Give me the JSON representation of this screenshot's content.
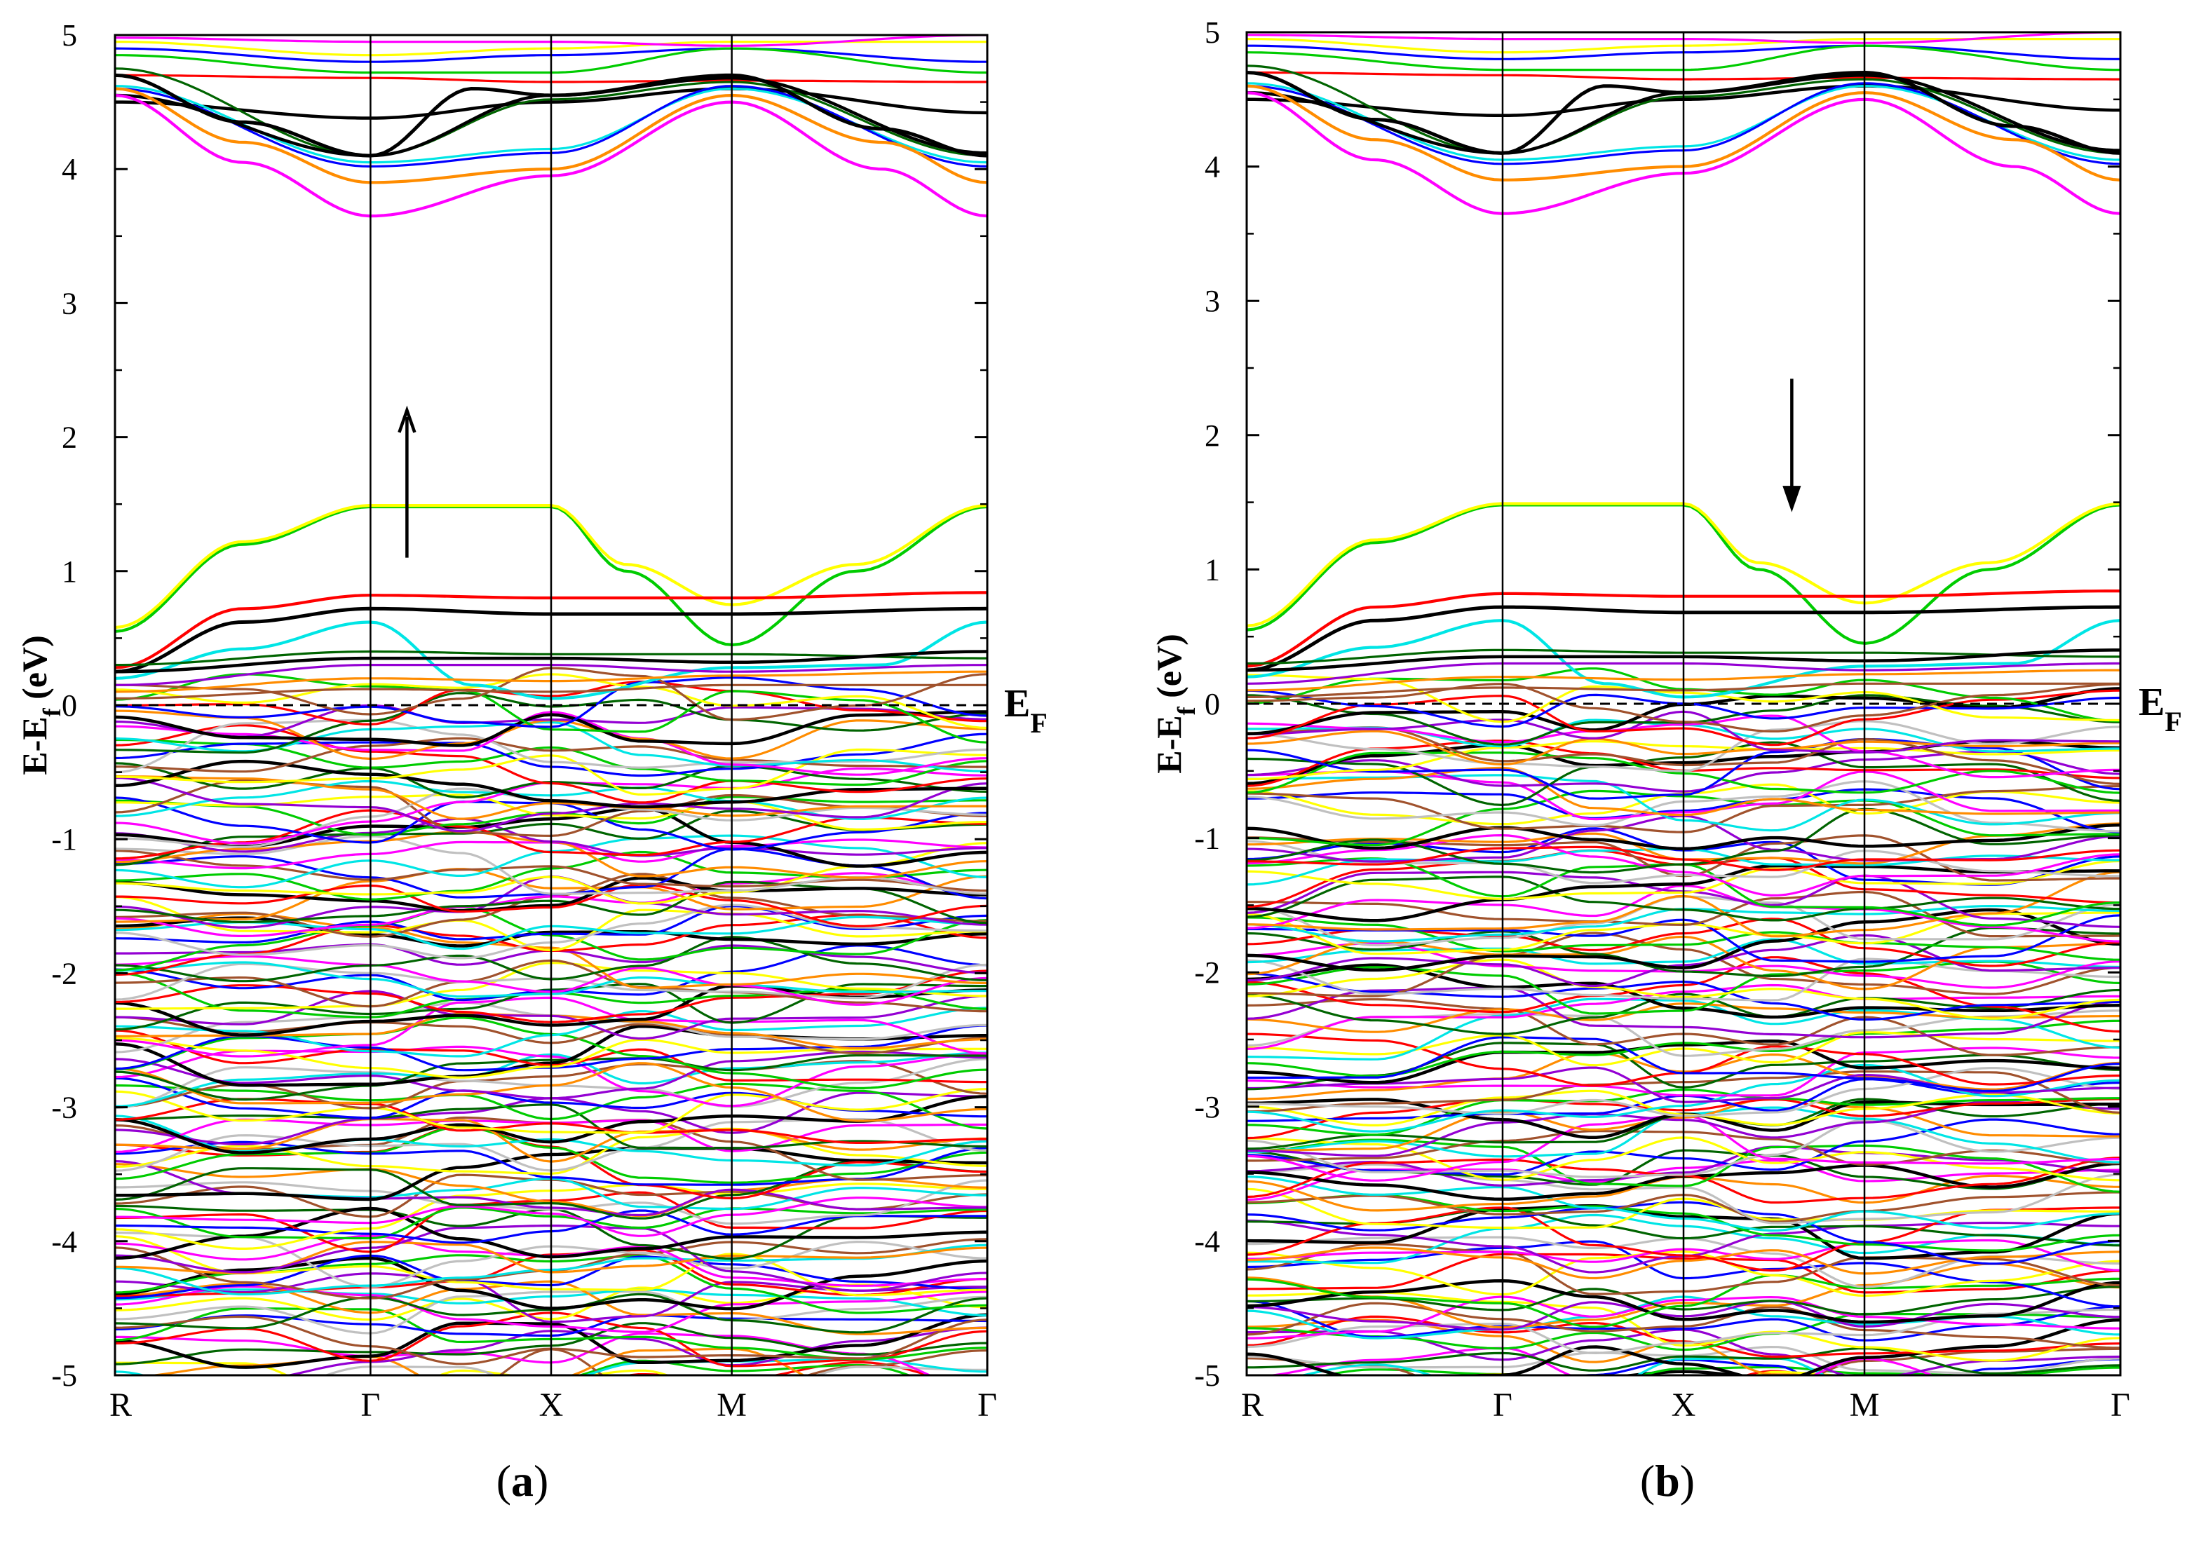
{
  "chart_data": [
    {
      "type": "line",
      "panel_label": "a",
      "caption": {
        "open": "(",
        "letter": "a",
        "close": ")"
      },
      "ylabel": {
        "main": "E-E",
        "sub": "f",
        "unit": " (eV)"
      },
      "fermi_label": {
        "main": "E",
        "sub": "F"
      },
      "ylim": [
        -5,
        5
      ],
      "yticks": [
        "5",
        "4",
        "3",
        "2",
        "1",
        "0",
        "-1",
        "-2",
        "-3",
        "-4",
        "-5"
      ],
      "ytick_values": [
        5,
        4,
        3,
        2,
        1,
        0,
        -1,
        -2,
        -3,
        -4,
        -5
      ],
      "kpoints": [
        "R",
        "Γ",
        "X",
        "M",
        "Γ"
      ],
      "kpoint_positions": [
        0,
        1,
        1.707,
        2.414,
        3.414
      ],
      "spin_arrow": "up",
      "highlighted_bands": [
        {
          "name": "top-valence",
          "color": "#00cc00",
          "x": [
            0,
            0.5,
            1,
            1.707,
            2.0,
            2.414,
            2.9,
            3.414
          ],
          "y": [
            0.55,
            1.2,
            1.48,
            1.48,
            1.0,
            0.45,
            1.0,
            1.48
          ]
        },
        {
          "name": "yellow-band",
          "color": "#ffff00",
          "x": [
            0,
            0.5,
            1,
            1.707,
            2.0,
            2.414,
            2.9,
            3.414
          ],
          "y": [
            0.58,
            1.22,
            1.49,
            1.49,
            1.05,
            0.75,
            1.05,
            1.49
          ]
        },
        {
          "name": "red-flat",
          "color": "#ff0000",
          "x": [
            0,
            0.5,
            1,
            1.707,
            2.414,
            3.414
          ],
          "y": [
            0.28,
            0.72,
            0.82,
            0.8,
            0.8,
            0.84
          ]
        },
        {
          "name": "black-flat",
          "color": "#000000",
          "x": [
            0,
            0.5,
            1,
            1.707,
            2.414,
            3.414
          ],
          "y": [
            0.25,
            0.62,
            0.72,
            0.68,
            0.68,
            0.72
          ]
        },
        {
          "name": "cyan-hump",
          "color": "#00e5e5",
          "x": [
            0,
            0.5,
            1,
            1.4,
            1.707,
            2.414,
            3.0,
            3.414
          ],
          "y": [
            0.2,
            0.42,
            0.62,
            0.15,
            0.05,
            0.28,
            0.3,
            0.62
          ]
        },
        {
          "name": "conduction-magenta",
          "color": "#ff00ff",
          "x": [
            0,
            0.5,
            1,
            1.707,
            2.414,
            3.0,
            3.414
          ],
          "y": [
            4.55,
            4.05,
            3.65,
            3.95,
            4.5,
            4.0,
            3.65
          ]
        },
        {
          "name": "conduction-orange",
          "color": "#ff8c00",
          "x": [
            0,
            0.5,
            1,
            1.707,
            2.414,
            3.0,
            3.414
          ],
          "y": [
            4.6,
            4.2,
            3.9,
            4.0,
            4.55,
            4.2,
            3.9
          ]
        },
        {
          "name": "conduction-black",
          "color": "#000000",
          "x": [
            0,
            0.5,
            1,
            1.4,
            1.707,
            2.414,
            3.0,
            3.414
          ],
          "y": [
            4.7,
            4.35,
            4.1,
            4.6,
            4.55,
            4.7,
            4.3,
            4.1
          ]
        }
      ]
    },
    {
      "type": "line",
      "panel_label": "b",
      "caption": {
        "open": "(",
        "letter": "b",
        "close": ")"
      },
      "ylabel": {
        "main": "E-E",
        "sub": "f",
        "unit": " (eV)"
      },
      "fermi_label": {
        "main": "E",
        "sub": "F"
      },
      "ylim": [
        -5,
        5
      ],
      "yticks": [
        "5",
        "4",
        "3",
        "2",
        "1",
        "0",
        "-1",
        "-2",
        "-3",
        "-4",
        "-5"
      ],
      "ytick_values": [
        5,
        4,
        3,
        2,
        1,
        0,
        -1,
        -2,
        -3,
        -4,
        -5
      ],
      "kpoints": [
        "R",
        "Γ",
        "X",
        "M",
        "Γ"
      ],
      "kpoint_positions": [
        0,
        1,
        1.707,
        2.414,
        3.414
      ],
      "spin_arrow": "down",
      "highlighted_bands": [
        {
          "name": "top-valence",
          "color": "#00cc00",
          "x": [
            0,
            0.5,
            1,
            1.707,
            2.0,
            2.414,
            2.9,
            3.414
          ],
          "y": [
            0.55,
            1.2,
            1.48,
            1.48,
            1.0,
            0.45,
            1.0,
            1.48
          ]
        },
        {
          "name": "yellow-band",
          "color": "#ffff00",
          "x": [
            0,
            0.5,
            1,
            1.707,
            2.0,
            2.414,
            2.9,
            3.414
          ],
          "y": [
            0.58,
            1.22,
            1.49,
            1.49,
            1.05,
            0.75,
            1.05,
            1.49
          ]
        },
        {
          "name": "red-flat",
          "color": "#ff0000",
          "x": [
            0,
            0.5,
            1,
            1.707,
            2.414,
            3.414
          ],
          "y": [
            0.28,
            0.72,
            0.82,
            0.8,
            0.8,
            0.84
          ]
        },
        {
          "name": "black-flat",
          "color": "#000000",
          "x": [
            0,
            0.5,
            1,
            1.707,
            2.414,
            3.414
          ],
          "y": [
            0.25,
            0.62,
            0.72,
            0.68,
            0.68,
            0.72
          ]
        },
        {
          "name": "cyan-hump",
          "color": "#00e5e5",
          "x": [
            0,
            0.5,
            1,
            1.4,
            1.707,
            2.414,
            3.0,
            3.414
          ],
          "y": [
            0.2,
            0.42,
            0.62,
            0.15,
            0.05,
            0.28,
            0.3,
            0.62
          ]
        },
        {
          "name": "conduction-magenta",
          "color": "#ff00ff",
          "x": [
            0,
            0.5,
            1,
            1.707,
            2.414,
            3.0,
            3.414
          ],
          "y": [
            4.55,
            4.05,
            3.65,
            3.95,
            4.5,
            4.0,
            3.65
          ]
        },
        {
          "name": "conduction-orange",
          "color": "#ff8c00",
          "x": [
            0,
            0.5,
            1,
            1.707,
            2.414,
            3.0,
            3.414
          ],
          "y": [
            4.6,
            4.2,
            3.9,
            4.0,
            4.55,
            4.2,
            3.9
          ]
        },
        {
          "name": "conduction-black",
          "color": "#000000",
          "x": [
            0,
            0.5,
            1,
            1.4,
            1.707,
            2.414,
            3.0,
            3.414
          ],
          "y": [
            4.7,
            4.35,
            4.1,
            4.6,
            4.55,
            4.7,
            4.3,
            4.1
          ]
        }
      ]
    }
  ],
  "band_palette": [
    "#000000",
    "#ff0000",
    "#00cc00",
    "#0000ff",
    "#ffff00",
    "#a0522d",
    "#c0c0c0",
    "#00e5e5",
    "#ff00ff",
    "#ff8c00",
    "#9400d3",
    "#006400"
  ]
}
